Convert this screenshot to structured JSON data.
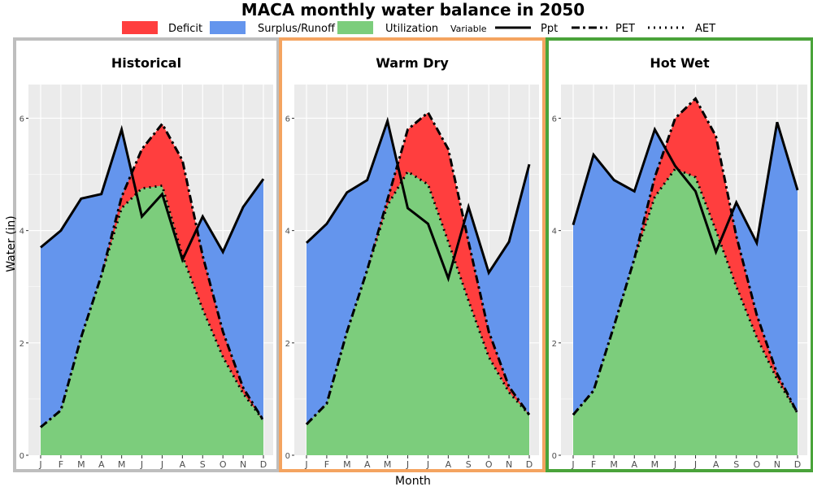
{
  "chart_data": {
    "type": "area",
    "title": "MACA monthly water balance in 2050",
    "xlabel": "Month",
    "ylabel": "Water (in)",
    "ylim": [
      0,
      6.6
    ],
    "yticks": [
      0,
      2,
      4,
      6
    ],
    "categories": [
      "J",
      "F",
      "M",
      "A",
      "M",
      "J",
      "J",
      "A",
      "S",
      "O",
      "N",
      "D"
    ],
    "legend": {
      "placement": "top",
      "fill_items": [
        {
          "key": "deficit",
          "label": "Deficit",
          "color": "#ff3e3e"
        },
        {
          "key": "surplus",
          "label": "Surplus/Runoff",
          "color": "#6495ed"
        },
        {
          "key": "utilization",
          "label": "Utilization",
          "color": "#7ccd7c"
        }
      ],
      "line_title": "Variable",
      "line_items": [
        {
          "key": "ppt",
          "label": "Ppt",
          "style": "solid"
        },
        {
          "key": "pet",
          "label": "PET",
          "style": "dashdot"
        },
        {
          "key": "aet",
          "label": "AET",
          "style": "dotted"
        }
      ]
    },
    "panels": [
      {
        "title": "Historical",
        "border_color": "#bebebe",
        "series": [
          {
            "name": "Ppt",
            "values": [
              3.7,
              4.0,
              4.57,
              4.65,
              5.8,
              4.25,
              4.65,
              3.48,
              4.25,
              3.62,
              4.42,
              4.92
            ]
          },
          {
            "name": "PET",
            "values": [
              0.5,
              0.8,
              2.1,
              3.2,
              4.6,
              5.45,
              5.9,
              5.25,
              3.55,
              2.2,
              1.2,
              0.62
            ]
          },
          {
            "name": "AET",
            "values": [
              0.5,
              0.8,
              2.1,
              3.2,
              4.4,
              4.75,
              4.8,
              3.55,
              2.6,
              1.75,
              1.1,
              0.62
            ]
          }
        ]
      },
      {
        "title": "Warm Dry",
        "border_color": "#f4a460",
        "series": [
          {
            "name": "Ppt",
            "values": [
              3.78,
              4.12,
              4.68,
              4.9,
              5.95,
              4.4,
              4.12,
              3.15,
              4.42,
              3.25,
              3.8,
              5.18
            ]
          },
          {
            "name": "PET",
            "values": [
              0.55,
              0.92,
              2.2,
              3.3,
              4.55,
              5.8,
              6.1,
              5.45,
              3.8,
              2.2,
              1.22,
              0.72
            ]
          },
          {
            "name": "AET",
            "values": [
              0.55,
              0.92,
              2.2,
              3.3,
              4.45,
              5.05,
              4.82,
              3.8,
              2.75,
              1.75,
              1.12,
              0.72
            ]
          }
        ]
      },
      {
        "title": "Hot Wet",
        "border_color": "#4aa33a",
        "series": [
          {
            "name": "Ppt",
            "values": [
              4.1,
              5.35,
              4.9,
              4.7,
              5.8,
              5.15,
              4.7,
              3.62,
              4.5,
              3.78,
              5.93,
              4.72
            ]
          },
          {
            "name": "PET",
            "values": [
              0.72,
              1.15,
              2.3,
              3.5,
              4.95,
              6.0,
              6.35,
              5.68,
              3.9,
              2.5,
              1.45,
              0.75
            ]
          },
          {
            "name": "AET",
            "values": [
              0.72,
              1.15,
              2.3,
              3.5,
              4.6,
              5.1,
              4.95,
              4.0,
              3.0,
              2.1,
              1.35,
              0.75
            ]
          }
        ]
      }
    ]
  }
}
